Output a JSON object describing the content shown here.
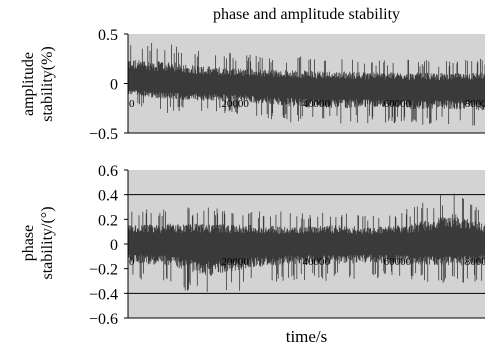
{
  "chart_data": [
    {
      "type": "line",
      "title": "phase and amplitude stability",
      "ylabel": "amplitude stability(%)",
      "xlabel": "",
      "xlim": [
        0,
        88000
      ],
      "ylim": [
        -0.5,
        0.5
      ],
      "yticks": [
        "0.5",
        "0",
        "−0.5"
      ],
      "ytick_values": [
        0.5,
        0,
        -0.5
      ],
      "xticks": [
        "0",
        "20000",
        "40000",
        "60000",
        "80000"
      ],
      "xtick_values": [
        0,
        20000,
        40000,
        60000,
        80000
      ],
      "grid": false,
      "background": "#d3d3d3",
      "series": [
        {
          "color": "#3a3a3a",
          "note_shape": "dense noise band",
          "x": [
            0,
            10000,
            20000,
            30000,
            40000,
            50000,
            60000,
            70000,
            80000,
            88000
          ],
          "center": [
            0.0,
            0.0,
            -0.02,
            -0.03,
            -0.04,
            -0.05,
            -0.05,
            -0.06,
            -0.06,
            -0.06
          ],
          "upper": [
            0.45,
            0.4,
            0.33,
            0.3,
            0.28,
            0.27,
            0.25,
            0.25,
            0.24,
            0.26
          ],
          "lower": [
            -0.2,
            -0.3,
            -0.3,
            -0.33,
            -0.4,
            -0.42,
            -0.4,
            -0.42,
            -0.42,
            -0.45
          ]
        }
      ]
    },
    {
      "type": "line",
      "title": "",
      "ylabel": "phase stability/(°)",
      "xlabel": "time/s",
      "xlim": [
        0,
        88000
      ],
      "ylim": [
        -0.6,
        0.6
      ],
      "yticks": [
        "0.6",
        "0.4",
        "0.2",
        "0",
        "−0.2",
        "−0.4",
        "−0.6"
      ],
      "ytick_values": [
        0.6,
        0.4,
        0.2,
        0,
        -0.2,
        -0.4,
        -0.6
      ],
      "xticks": [
        "0",
        "20000",
        "40000",
        "60000",
        "80000"
      ],
      "xtick_values": [
        0,
        20000,
        40000,
        60000,
        80000
      ],
      "reference_lines": [
        0.4,
        -0.4
      ],
      "grid": false,
      "background": "#d3d3d3",
      "series": [
        {
          "color": "#3a3a3a",
          "note_shape": "dense noise band",
          "x": [
            0,
            10000,
            20000,
            30000,
            40000,
            50000,
            60000,
            70000,
            80000,
            88000
          ],
          "center": [
            0.0,
            0.0,
            0.0,
            0.0,
            0.0,
            0.0,
            0.0,
            0.0,
            0.0,
            0.0
          ],
          "upper": [
            0.28,
            0.3,
            0.3,
            0.28,
            0.26,
            0.28,
            0.25,
            0.3,
            0.45,
            0.3
          ],
          "lower": [
            -0.28,
            -0.32,
            -0.48,
            -0.35,
            -0.3,
            -0.3,
            -0.28,
            -0.3,
            -0.32,
            -0.3
          ]
        }
      ]
    }
  ]
}
